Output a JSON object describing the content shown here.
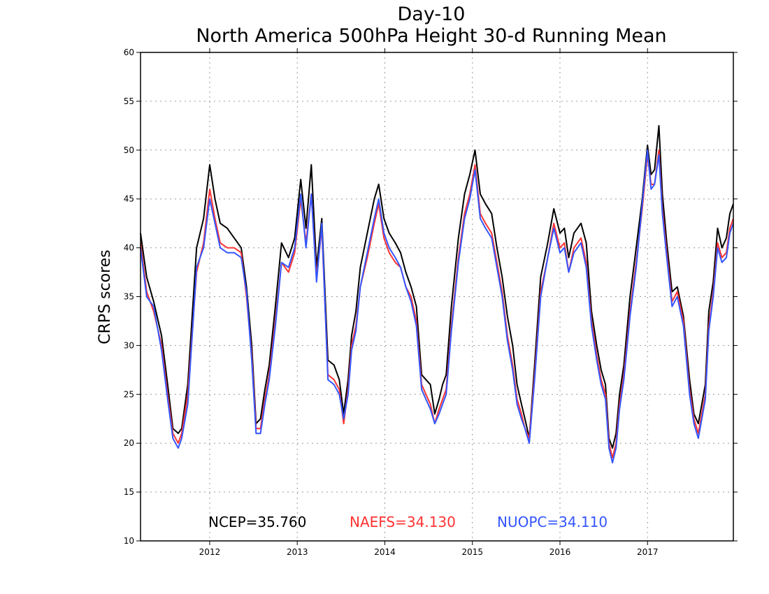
{
  "chart_data": {
    "type": "line",
    "title": "Day-10",
    "subtitle": "North America 500hPa Height 30-d Running Mean",
    "xlabel": "",
    "ylabel": "CRPS scores",
    "xlim": [
      2011.21,
      2017.98
    ],
    "ylim": [
      10,
      60
    ],
    "yticks": [
      10,
      15,
      20,
      25,
      30,
      35,
      40,
      45,
      50,
      55,
      60
    ],
    "xticks": [
      {
        "value": 2012.0,
        "label": "2012"
      },
      {
        "value": 2013.0,
        "label": "2013"
      },
      {
        "value": 2014.0,
        "label": "2014"
      },
      {
        "value": 2015.0,
        "label": "2015"
      },
      {
        "value": 2016.0,
        "label": "2016"
      },
      {
        "value": 2017.0,
        "label": "2017"
      }
    ],
    "grid": true,
    "legend_position": "bottom-center",
    "x": [
      2011.21,
      2011.28,
      2011.36,
      2011.45,
      2011.52,
      2011.58,
      2011.64,
      2011.68,
      2011.75,
      2011.85,
      2011.93,
      2012.0,
      2012.06,
      2012.12,
      2012.2,
      2012.28,
      2012.36,
      2012.42,
      2012.48,
      2012.53,
      2012.58,
      2012.63,
      2012.68,
      2012.75,
      2012.82,
      2012.9,
      2012.97,
      2013.04,
      2013.1,
      2013.16,
      2013.22,
      2013.28,
      2013.35,
      2013.42,
      2013.48,
      2013.53,
      2013.58,
      2013.62,
      2013.67,
      2013.72,
      2013.8,
      2013.88,
      2013.93,
      2013.99,
      2014.05,
      2014.12,
      2014.18,
      2014.24,
      2014.3,
      2014.36,
      2014.42,
      2014.47,
      2014.52,
      2014.57,
      2014.62,
      2014.66,
      2014.7,
      2014.76,
      2014.84,
      2014.91,
      2014.97,
      2015.03,
      2015.09,
      2015.15,
      2015.22,
      2015.28,
      2015.34,
      2015.4,
      2015.46,
      2015.51,
      2015.56,
      2015.6,
      2015.65,
      2015.71,
      2015.78,
      2015.86,
      2015.93,
      2016.0,
      2016.05,
      2016.1,
      2016.16,
      2016.24,
      2016.3,
      2016.36,
      2016.42,
      2016.47,
      2016.52,
      2016.56,
      2016.6,
      2016.64,
      2016.68,
      2016.73,
      2016.8,
      2016.87,
      2016.94,
      2017.0,
      2017.04,
      2017.08,
      2017.13,
      2017.17,
      2017.22,
      2017.28,
      2017.34,
      2017.41,
      2017.48,
      2017.53,
      2017.58,
      2017.62,
      2017.66,
      2017.7,
      2017.75,
      2017.8,
      2017.85,
      2017.9,
      2017.94,
      2017.98
    ],
    "series": [
      {
        "name": "NCEP",
        "color": "#000000",
        "legend_label": "NCEP=35.760",
        "values": [
          41.5,
          37.0,
          34.5,
          31.0,
          26.0,
          21.5,
          21.0,
          21.5,
          26.0,
          40.0,
          43.0,
          48.5,
          45.0,
          42.5,
          42.0,
          41.0,
          40.0,
          36.0,
          30.0,
          22.0,
          22.5,
          25.5,
          28.0,
          34.0,
          40.5,
          39.0,
          41.0,
          47.0,
          42.0,
          48.5,
          38.0,
          43.0,
          28.5,
          28.0,
          26.5,
          23.0,
          26.5,
          31.0,
          33.5,
          38.0,
          41.5,
          45.0,
          46.5,
          43.0,
          41.5,
          40.5,
          39.5,
          37.5,
          36.0,
          34.0,
          27.0,
          26.5,
          26.0,
          23.0,
          24.5,
          26.0,
          27.0,
          34.0,
          41.0,
          45.5,
          47.5,
          50.0,
          45.5,
          44.5,
          43.5,
          40.0,
          37.0,
          33.0,
          30.0,
          26.0,
          24.0,
          22.5,
          20.5,
          28.0,
          37.0,
          40.5,
          44.0,
          41.5,
          42.0,
          39.0,
          41.5,
          42.5,
          40.5,
          33.5,
          30.0,
          27.5,
          26.0,
          20.5,
          19.5,
          21.0,
          25.0,
          28.0,
          35.0,
          40.0,
          45.0,
          50.5,
          47.5,
          48.0,
          52.5,
          45.5,
          40.5,
          35.5,
          36.0,
          33.0,
          26.5,
          23.0,
          22.0,
          24.0,
          26.0,
          33.5,
          36.5,
          42.0,
          40.0,
          41.0,
          43.5,
          44.5
        ]
      },
      {
        "name": "NAEFS",
        "color": "#ff3333",
        "legend_label": "NAEFS=34.130",
        "values": [
          40.5,
          35.5,
          33.5,
          30.0,
          25.0,
          21.0,
          20.0,
          21.0,
          25.0,
          37.5,
          40.5,
          46.0,
          43.0,
          40.5,
          40.0,
          40.0,
          39.5,
          35.0,
          29.0,
          21.5,
          21.5,
          24.5,
          27.0,
          32.5,
          38.5,
          37.5,
          39.5,
          45.0,
          40.5,
          45.5,
          37.0,
          42.0,
          27.0,
          26.5,
          25.5,
          22.0,
          25.5,
          30.0,
          32.0,
          36.0,
          39.0,
          42.5,
          44.5,
          41.0,
          39.5,
          38.5,
          38.0,
          36.0,
          35.0,
          32.5,
          26.0,
          25.0,
          24.0,
          22.0,
          23.5,
          24.5,
          25.5,
          32.0,
          39.0,
          43.5,
          45.5,
          48.5,
          43.5,
          42.5,
          41.5,
          38.5,
          35.5,
          31.0,
          28.0,
          24.5,
          23.0,
          21.5,
          20.5,
          27.0,
          35.5,
          39.0,
          42.5,
          40.0,
          40.5,
          37.5,
          40.0,
          41.0,
          38.5,
          32.5,
          29.0,
          26.5,
          25.0,
          20.0,
          18.5,
          20.0,
          24.0,
          27.0,
          33.5,
          38.5,
          44.0,
          49.5,
          46.5,
          46.5,
          50.0,
          44.0,
          39.5,
          34.5,
          35.5,
          32.5,
          25.5,
          22.5,
          21.0,
          23.0,
          25.0,
          32.0,
          35.5,
          40.5,
          39.0,
          39.5,
          42.0,
          43.0
        ]
      },
      {
        "name": "NUOPC",
        "color": "#3355ff",
        "legend_label": "NUOPC=34.110",
        "values": [
          40.0,
          35.0,
          34.0,
          29.5,
          24.5,
          20.5,
          19.5,
          20.5,
          24.0,
          38.0,
          40.0,
          45.0,
          42.5,
          40.0,
          39.5,
          39.5,
          39.0,
          35.5,
          28.5,
          21.0,
          21.0,
          24.0,
          26.5,
          32.0,
          38.5,
          38.0,
          40.0,
          45.5,
          40.0,
          45.5,
          36.5,
          42.5,
          26.5,
          26.0,
          25.0,
          22.5,
          25.0,
          29.5,
          31.5,
          36.0,
          39.5,
          43.0,
          45.0,
          41.5,
          40.0,
          39.0,
          38.0,
          36.0,
          34.5,
          32.0,
          25.5,
          24.5,
          23.5,
          22.0,
          23.0,
          24.0,
          25.0,
          31.5,
          38.5,
          43.0,
          45.0,
          48.0,
          43.0,
          42.0,
          41.0,
          38.0,
          35.0,
          30.5,
          27.5,
          24.0,
          22.5,
          21.5,
          20.0,
          26.5,
          35.0,
          39.0,
          42.0,
          39.5,
          40.0,
          37.5,
          39.5,
          40.5,
          38.0,
          32.0,
          28.5,
          26.0,
          24.5,
          19.5,
          18.0,
          19.5,
          23.5,
          26.5,
          33.0,
          38.0,
          44.5,
          50.0,
          46.0,
          46.5,
          49.5,
          43.5,
          39.0,
          34.0,
          35.0,
          32.0,
          25.0,
          22.0,
          20.5,
          22.5,
          24.5,
          31.5,
          35.0,
          40.0,
          38.5,
          39.0,
          41.5,
          42.5
        ]
      }
    ]
  }
}
